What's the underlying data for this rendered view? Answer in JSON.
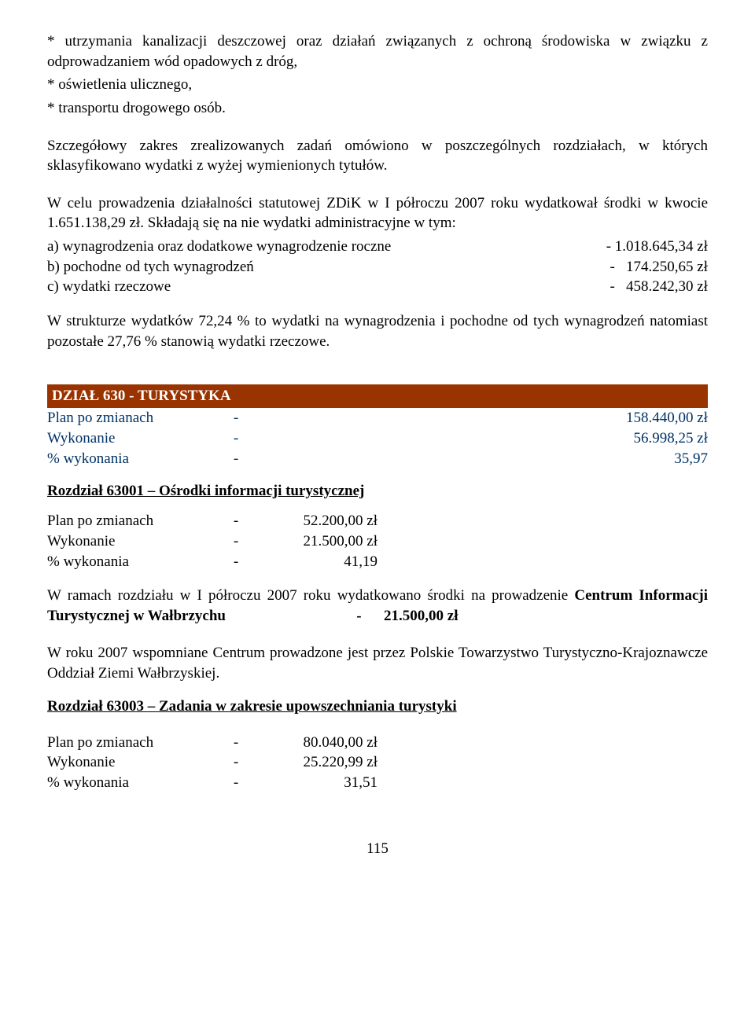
{
  "intro": {
    "bullet1": "* utrzymania kanalizacji deszczowej oraz działań związanych z ochroną środowiska w związku z odprowadzaniem wód opadowych z dróg,",
    "bullet2": "* oświetlenia ulicznego,",
    "bullet3": "* transportu drogowego osób.",
    "para1": "Szczegółowy zakres zrealizowanych zadań omówiono w poszczególnych rozdziałach, w których sklasyfikowano wydatki z wyżej wymienionych tytułów.",
    "para2": "W celu prowadzenia działalności statutowej ZDiK w I półroczu 2007 roku wydatkował środki w kwocie 1.651.138,29 zł. Składają się na nie wydatki administracyjne w tym:",
    "item_a_label": "a) wynagrodzenia oraz dodatkowe wynagrodzenie roczne",
    "item_a_value": "- 1.018.645,34 zł",
    "item_b_label": "b) pochodne od tych wynagrodzeń",
    "item_b_value": "-   174.250,65 zł",
    "item_c_label": "c) wydatki rzeczowe",
    "item_c_value": "-   458.242,30 zł",
    "para3": "W strukturze wydatków 72,24 % to wydatki na wynagrodzenia i pochodne od tych wynagrodzeń natomiast pozostałe 27,76 % stanowią wydatki rzeczowe."
  },
  "section": {
    "title": "DZIAŁ 630 - TURYSTYKA",
    "rows": [
      {
        "label": "Plan po zmianach",
        "dash": "-",
        "value": "158.440,00 zł"
      },
      {
        "label": "Wykonanie",
        "dash": "-",
        "value": "56.998,25 zł"
      },
      {
        "label": "% wykonania",
        "dash": "-",
        "value": "35,97"
      }
    ]
  },
  "sub1": {
    "heading": "Rozdział 63001 – Ośrodki informacji turystycznej",
    "rows": [
      {
        "label": "Plan po zmianach",
        "dash": "-",
        "value": "52.200,00 zł"
      },
      {
        "label": "Wykonanie",
        "dash": "-",
        "value": "21.500,00 zł"
      },
      {
        "label": "% wykonania",
        "dash": "-",
        "value": "41,19"
      }
    ],
    "para1_a": "W ramach rozdziału w I półroczu 2007 roku wydatkowano środki na prowadzenie ",
    "para1_b": "Centrum Informacji Turystycznej w Wałbrzychu",
    "para1_pad": "                                   -      ",
    "para1_c": "21.500,00 zł",
    "para2": "W roku 2007 wspomniane Centrum prowadzone jest przez Polskie Towarzystwo Turystyczno-Krajoznawcze Oddział Ziemi Wałbrzyskiej."
  },
  "sub2": {
    "heading": "Rozdział 63003 – Zadania w zakresie upowszechniania turystyki",
    "rows": [
      {
        "label": "Plan po zmianach",
        "dash": "-",
        "value": "80.040,00 zł"
      },
      {
        "label": "Wykonanie",
        "dash": "-",
        "value": "25.220,99 zł"
      },
      {
        "label": "% wykonania",
        "dash": "-",
        "value": "31,51"
      }
    ]
  },
  "pageNumber": "115"
}
